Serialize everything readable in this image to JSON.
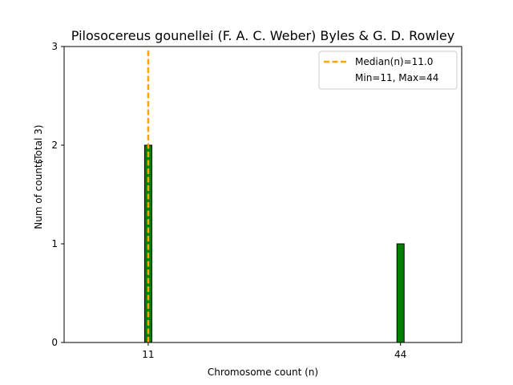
{
  "chart_data": {
    "type": "bar",
    "title": "Pilosocereus gounellei (F. A. C. Weber) Byles & G. D. Rowley",
    "xlabel": "Chromosome count (n)",
    "ylabel": "Num of counts",
    "ylabel_extra": "(Total 3)",
    "categories": [
      11,
      44
    ],
    "values": [
      2,
      1
    ],
    "xlim": [
      0,
      52
    ],
    "ylim": [
      0,
      3
    ],
    "yticks": [
      0,
      1,
      2,
      3
    ],
    "xticks": [
      11,
      44
    ],
    "median": 11.0,
    "legend": {
      "position": "top-right",
      "median_label": "Median(n)=11.0",
      "range_label": "Min=11, Max=44"
    },
    "colors": {
      "bar_fill": "#008000",
      "bar_edge": "#000000",
      "median_line": "#FFA500"
    }
  }
}
